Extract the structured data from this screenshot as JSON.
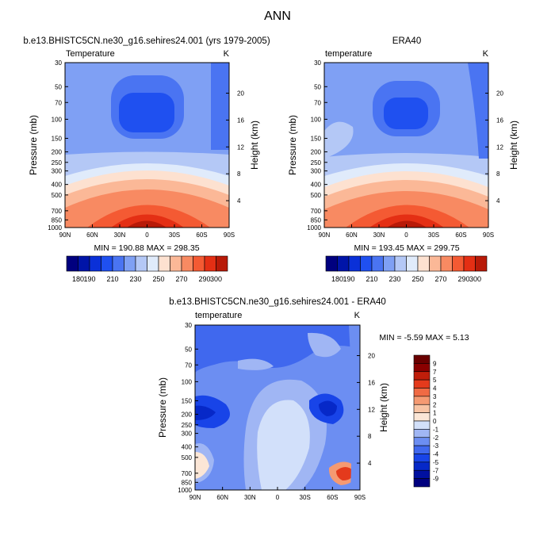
{
  "page": {
    "title": "ANN"
  },
  "chart_data": [
    {
      "type": "contour",
      "title": "b.e13.BHISTC5CN.ne30_g16.sehires24.001 (yrs 1979-2005)",
      "subtitle_left": "Temperature",
      "subtitle_right": "K",
      "xlabel": "",
      "ylabel": "Pressure (mb)",
      "ylabel_right": "Height (km)",
      "x_ticks": [
        "90N",
        "60N",
        "30N",
        "0",
        "30S",
        "60S",
        "90S"
      ],
      "y_ticks": [
        "30",
        "50",
        "70",
        "100",
        "150",
        "200",
        "250",
        "300",
        "400",
        "500",
        "700",
        "850",
        "1000"
      ],
      "y_right_ticks": [
        "20",
        "16",
        "12",
        "8",
        "4"
      ],
      "ylim": [
        1000,
        30
      ],
      "stats": "MIN = 190.88  MAX = 298.35",
      "levels": [
        "180",
        "190",
        "200",
        "210",
        "220",
        "230",
        "240",
        "250",
        "260",
        "270",
        "280",
        "290",
        "300"
      ],
      "colorbar_labels": [
        "180",
        "190",
        "210",
        "230",
        "250",
        "270",
        "290",
        "300"
      ],
      "colors": [
        "#00007f",
        "#0014a8",
        "#0a30d8",
        "#1f50f0",
        "#4a74f2",
        "#7fa0f4",
        "#b4c8f6",
        "#e0ebfb",
        "#fde1d0",
        "#fbb897",
        "#f88a62",
        "#f45a33",
        "#e42f14",
        "#b81a08",
        "#800000"
      ]
    },
    {
      "type": "contour",
      "title": "ERA40",
      "subtitle_left": "temperature",
      "subtitle_right": "K",
      "xlabel": "",
      "ylabel": "Pressure (mb)",
      "ylabel_right": "Height (km)",
      "x_ticks": [
        "90N",
        "60N",
        "30N",
        "0",
        "30S",
        "60S",
        "90S"
      ],
      "y_ticks": [
        "30",
        "50",
        "70",
        "100",
        "150",
        "200",
        "250",
        "300",
        "400",
        "500",
        "700",
        "850",
        "1000"
      ],
      "y_right_ticks": [
        "20",
        "16",
        "12",
        "8",
        "4"
      ],
      "ylim": [
        1000,
        30
      ],
      "stats": "MIN = 193.45  MAX = 299.75",
      "levels": [
        "180",
        "190",
        "200",
        "210",
        "220",
        "230",
        "240",
        "250",
        "260",
        "270",
        "280",
        "290",
        "300"
      ],
      "colorbar_labels": [
        "180",
        "190",
        "210",
        "230",
        "250",
        "270",
        "290",
        "300"
      ]
    },
    {
      "type": "contour",
      "title": "b.e13.BHISTC5CN.ne30_g16.sehires24.001 - ERA40",
      "subtitle_left": "temperature",
      "subtitle_right": "K",
      "xlabel": "",
      "ylabel": "Pressure (mb)",
      "ylabel_right": "Height (km)",
      "x_ticks": [
        "90N",
        "60N",
        "30N",
        "0",
        "30S",
        "60S",
        "90S"
      ],
      "y_ticks": [
        "30",
        "50",
        "70",
        "100",
        "150",
        "200",
        "250",
        "300",
        "400",
        "500",
        "700",
        "850",
        "1000"
      ],
      "y_right_ticks": [
        "20",
        "16",
        "12",
        "8",
        "4"
      ],
      "ylim": [
        1000,
        30
      ],
      "stats": "MIN =  -5.59  MAX =   5.13",
      "levels": [
        "-9",
        "-7",
        "-5",
        "-4",
        "-3",
        "-2",
        "-1",
        "0",
        "1",
        "2",
        "3",
        "4",
        "5",
        "7",
        "9"
      ],
      "colors": [
        "#00007f",
        "#0010a0",
        "#0628c8",
        "#1844e8",
        "#4068ee",
        "#6c8ef2",
        "#a0b6f4",
        "#d2e0fa",
        "#fbe6d6",
        "#f8c4a4",
        "#f59a72",
        "#f06a44",
        "#e43a1c",
        "#c01e0a",
        "#8a0000",
        "#6a0000"
      ]
    }
  ]
}
